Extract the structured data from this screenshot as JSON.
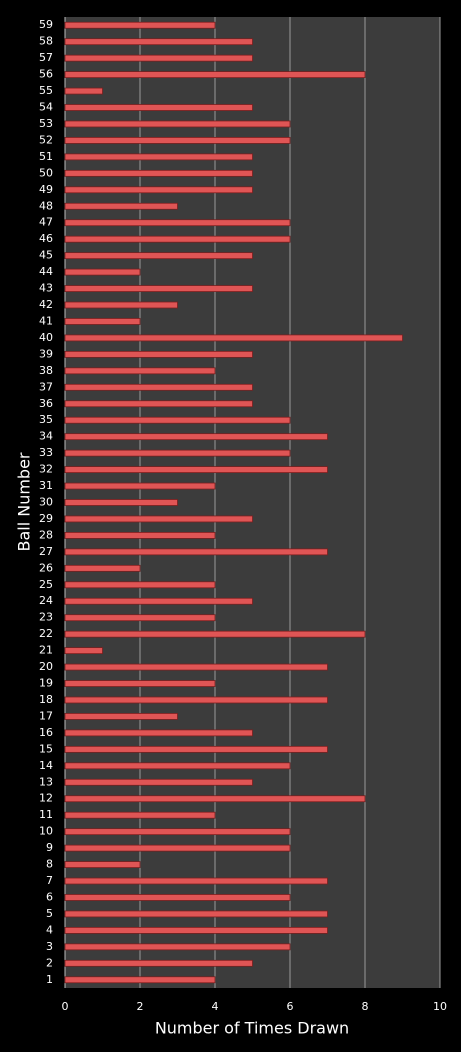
{
  "chart_data": {
    "type": "bar",
    "orientation": "horizontal",
    "x_label": "Number of Times Drawn",
    "y_label": "Ball Number",
    "categories": [
      "1",
      "2",
      "3",
      "4",
      "5",
      "6",
      "7",
      "8",
      "9",
      "10",
      "11",
      "12",
      "13",
      "14",
      "15",
      "16",
      "17",
      "18",
      "19",
      "20",
      "21",
      "22",
      "23",
      "24",
      "25",
      "26",
      "27",
      "28",
      "29",
      "30",
      "31",
      "32",
      "33",
      "34",
      "35",
      "36",
      "37",
      "38",
      "39",
      "40",
      "41",
      "42",
      "43",
      "44",
      "45",
      "46",
      "47",
      "48",
      "49",
      "50",
      "51",
      "52",
      "53",
      "54",
      "55",
      "56",
      "57",
      "58",
      "59"
    ],
    "values": [
      4,
      5,
      6,
      7,
      7,
      6,
      7,
      2,
      6,
      6,
      4,
      8,
      5,
      6,
      7,
      5,
      3,
      7,
      4,
      7,
      1,
      8,
      4,
      5,
      4,
      2,
      7,
      4,
      5,
      3,
      4,
      7,
      6,
      7,
      6,
      5,
      5,
      4,
      5,
      9,
      2,
      3,
      5,
      2,
      5,
      6,
      6,
      3,
      5,
      5,
      5,
      6,
      6,
      5,
      1,
      8,
      5,
      5,
      4
    ],
    "color": "#e05555",
    "xlim": [
      0,
      10
    ],
    "xticks": [
      0,
      2,
      4,
      6,
      8,
      10
    ],
    "grid": true
  }
}
